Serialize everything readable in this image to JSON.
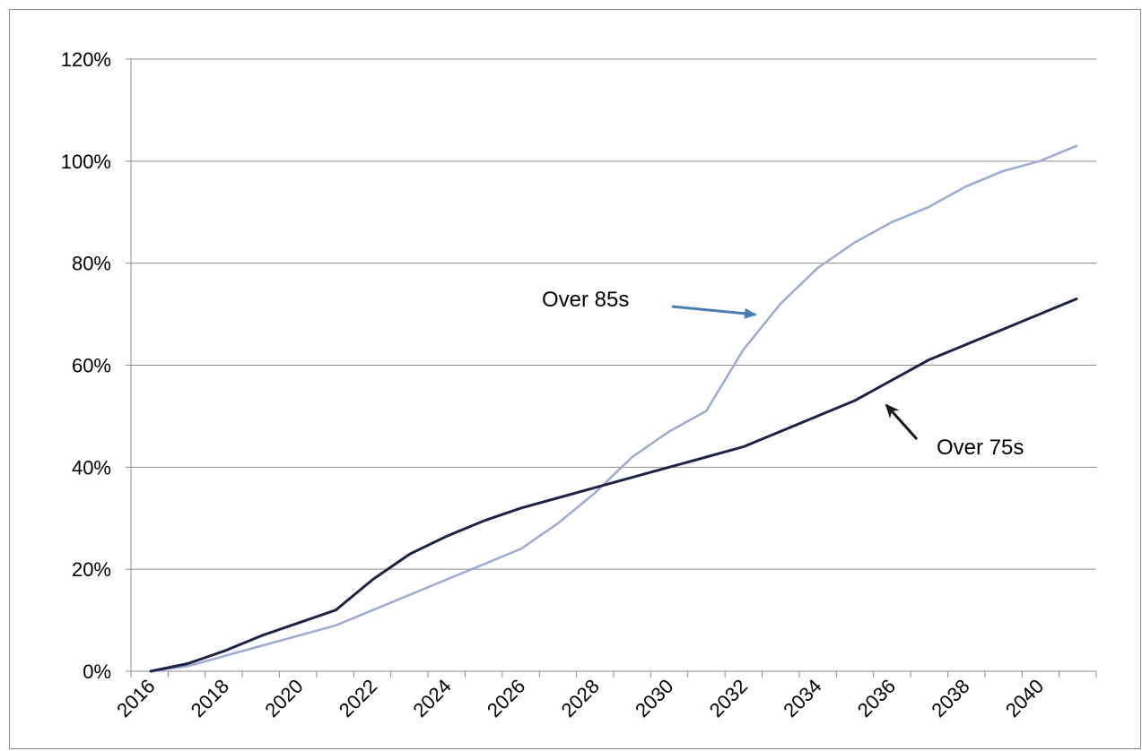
{
  "chart_data": {
    "type": "line",
    "title": "",
    "xlabel": "",
    "ylabel": "",
    "x": [
      2016,
      2017,
      2018,
      2019,
      2020,
      2021,
      2022,
      2023,
      2024,
      2025,
      2026,
      2027,
      2028,
      2029,
      2030,
      2031,
      2032,
      2033,
      2034,
      2035,
      2036,
      2037,
      2038,
      2039,
      2040,
      2041
    ],
    "x_tick_labels": [
      "2016",
      "2018",
      "2020",
      "2022",
      "2024",
      "2026",
      "2028",
      "2030",
      "2032",
      "2034",
      "2036",
      "2038",
      "2040"
    ],
    "y_tick_labels": [
      "0%",
      "20%",
      "40%",
      "60%",
      "80%",
      "100%",
      "120%"
    ],
    "y_ticks": [
      0,
      20,
      40,
      60,
      80,
      100,
      120
    ],
    "ylim": [
      0,
      120
    ],
    "xlim": [
      2016,
      2041
    ],
    "grid": "horizontal",
    "legend": "none",
    "series": [
      {
        "name": "Over 85s",
        "color": "#9aaad6",
        "values": [
          0,
          1,
          3,
          5,
          7,
          9,
          12,
          15,
          18,
          21,
          24,
          29,
          35,
          42,
          47,
          51,
          63,
          72,
          79,
          84,
          88,
          91,
          95,
          98,
          100,
          103
        ]
      },
      {
        "name": "Over 75s",
        "color": "#1c2346",
        "values": [
          0,
          1.5,
          4,
          7,
          9.5,
          12,
          18,
          23,
          26.5,
          29.5,
          32,
          34,
          36,
          38,
          40,
          42,
          44,
          47,
          50,
          53,
          57,
          61,
          64,
          67,
          70,
          73
        ]
      }
    ],
    "annotations": [
      {
        "text": "Over 85s",
        "target_series": "Over 85s",
        "arrow_color": "#4a7cb8"
      },
      {
        "text": "Over 75s",
        "target_series": "Over 75s",
        "arrow_color": "#1a1a1a"
      }
    ]
  }
}
